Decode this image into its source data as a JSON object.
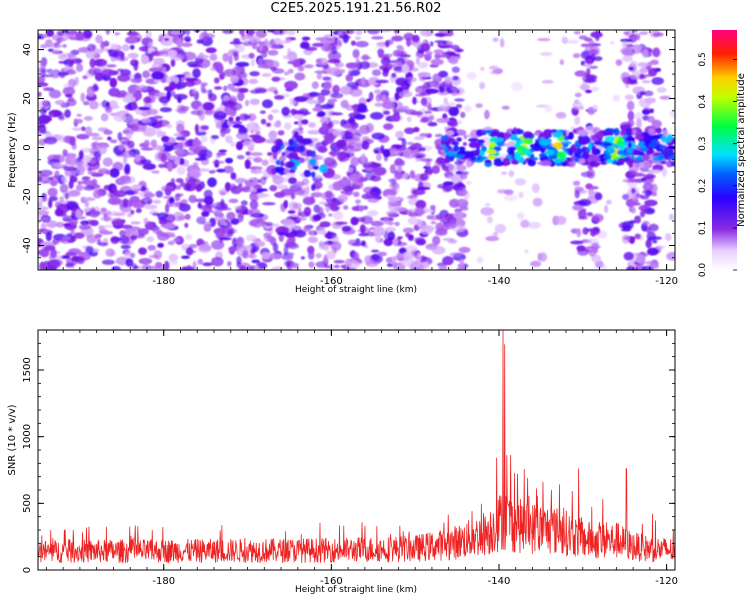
{
  "title": "C2E5.2025.191.21.56.R02",
  "chart_data": [
    {
      "type": "heatmap",
      "xlabel": "Height of straight line (km)",
      "ylabel": "Frequency (Hz)",
      "xlim": [
        -195,
        -119
      ],
      "ylim": [
        -50,
        48
      ],
      "xticks": [
        "-180",
        "-160",
        "-140",
        "-120"
      ],
      "xtick_values": [
        -180,
        -160,
        -140,
        -120
      ],
      "yticks": [
        "-40",
        "-20",
        "0",
        "20",
        "40"
      ],
      "ytick_values": [
        -40,
        -20,
        0,
        20,
        40
      ],
      "colorbar": {
        "label": "Normalized spectral amplitude",
        "range": [
          0,
          0.57
        ],
        "ticks": [
          "0.0",
          "0.1",
          "0.2",
          "0.3",
          "0.4",
          "0.5"
        ],
        "tick_values": [
          0.0,
          0.1,
          0.2,
          0.3,
          0.4,
          0.5
        ],
        "colors": [
          "#ffffff",
          "#8a2be2",
          "#0000ff",
          "#00ffff",
          "#00ff00",
          "#ffff00",
          "#ff0000",
          "#ff0080"
        ]
      },
      "signal_band": {
        "frequency_hz": 0,
        "x_range": [
          -147,
          -119
        ],
        "peak_amplitude": 0.42,
        "peak_heights_km": [
          -141,
          -137,
          -133,
          -126
        ]
      },
      "weak_band": {
        "x_range": [
          -167,
          -160
        ],
        "amplitude": 0.15
      },
      "sparse_regions": [
        [
          -144,
          -131
        ],
        [
          -128,
          -125
        ],
        [
          -121,
          -119
        ]
      ]
    },
    {
      "type": "line",
      "xlabel": "Height of straight line (km)",
      "ylabel": "SNR (10 * v/v)",
      "xlim": [
        -195,
        -119
      ],
      "ylim": [
        0,
        1800
      ],
      "xticks": [
        "-180",
        "-160",
        "-140",
        "-120"
      ],
      "xtick_values": [
        -180,
        -160,
        -140,
        -120
      ],
      "yticks": [
        "0",
        "500",
        "1000",
        "1500"
      ],
      "ytick_values": [
        0,
        500,
        1000,
        1500
      ],
      "series": [
        {
          "color": "#ee2222",
          "baseline_x": [
            -195,
            -175,
            -160,
            -150,
            -146,
            -143,
            -141,
            -140.5,
            -140,
            -139.5,
            -139,
            -138,
            -136,
            -134,
            -132,
            -130,
            -128,
            -126,
            -124,
            -122,
            -119
          ],
          "baseline_y": [
            150,
            155,
            160,
            175,
            210,
            260,
            320,
            360,
            380,
            420,
            400,
            360,
            340,
            330,
            300,
            250,
            230,
            240,
            190,
            170,
            160
          ],
          "peaks_x": [
            -139.5,
            -139.3,
            -138.6,
            -140.3,
            -137.8,
            -135.5,
            -132.8,
            -130.5,
            -124.8,
            -127.6,
            -121.7,
            -143.2,
            -156
          ],
          "peaks_y": [
            1800,
            1690,
            860,
            840,
            720,
            610,
            640,
            760,
            760,
            530,
            420,
            440,
            330
          ]
        }
      ]
    }
  ]
}
